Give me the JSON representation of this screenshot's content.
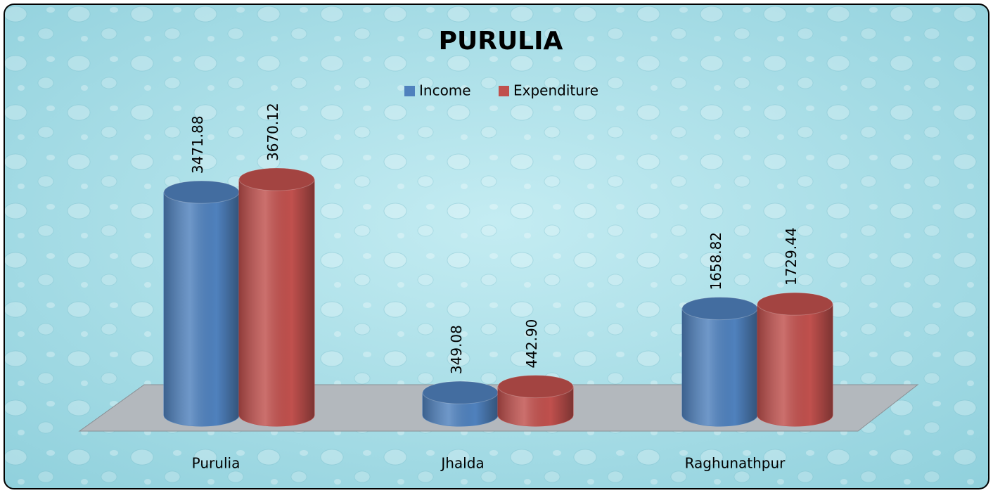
{
  "chart_data": {
    "type": "bar3d",
    "title": "PURULIA",
    "categories": [
      "Purulia",
      "Jhalda",
      "Raghunathpur"
    ],
    "series": [
      {
        "name": "Income",
        "color": "#4f81bd",
        "values": [
          3471.88,
          349.08,
          1658.82
        ],
        "value_labels": [
          "3471.88",
          "349.08",
          "1658.82"
        ]
      },
      {
        "name": "Expenditure",
        "color": "#c0504d",
        "values": [
          3670.12,
          442.9,
          1729.44
        ],
        "value_labels": [
          "3670.12",
          "442.90",
          "1729.44"
        ]
      }
    ],
    "legend": "top"
  }
}
